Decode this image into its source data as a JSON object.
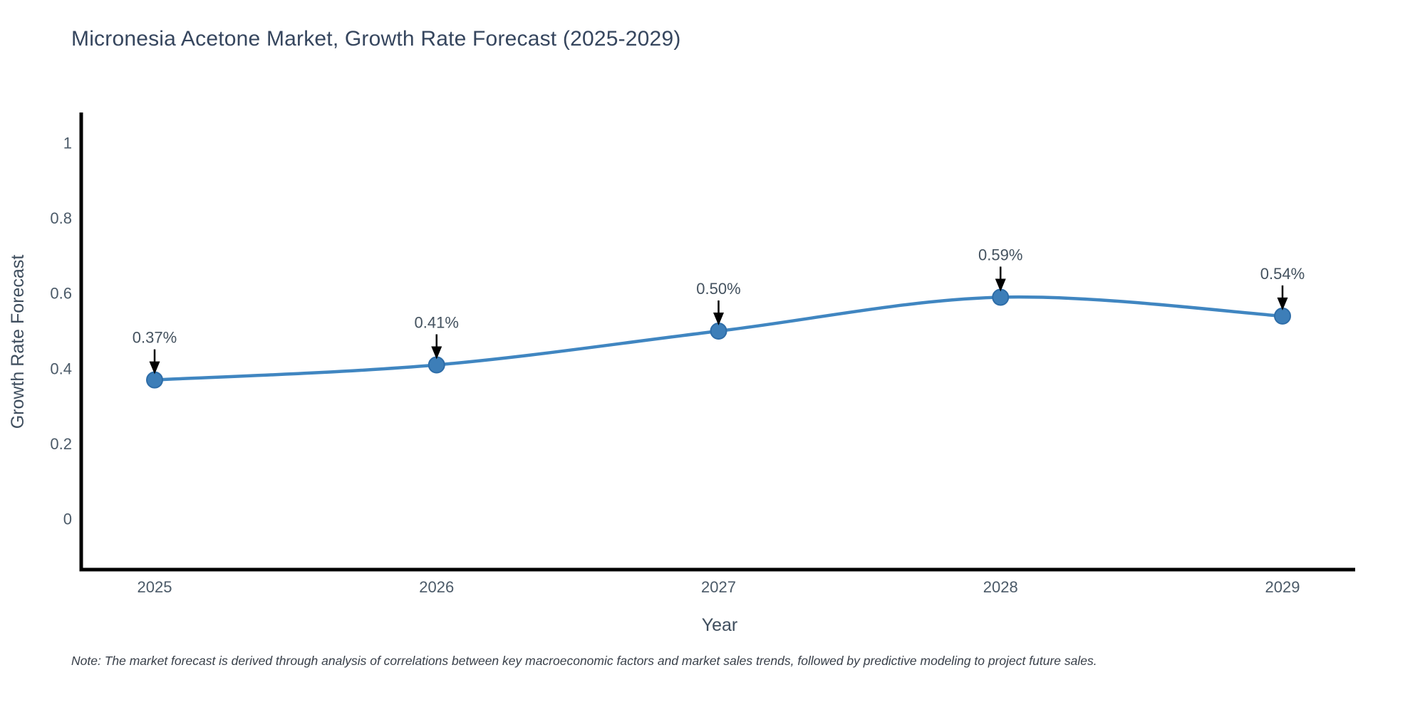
{
  "title": "Micronesia Acetone Market, Growth Rate Forecast (2025-2029)",
  "note": "Note: The market forecast is derived through analysis of correlations between key macroeconomic factors and market sales trends, followed by predictive modeling to project future sales.",
  "chart_data": {
    "type": "line",
    "title": "Micronesia Acetone Market, Growth Rate Forecast (2025-2029)",
    "xlabel": "Year",
    "ylabel": "Growth Rate Forecast",
    "x": [
      "2025",
      "2026",
      "2027",
      "2028",
      "2029"
    ],
    "series": [
      {
        "name": "Growth Rate Forecast",
        "values": [
          0.37,
          0.41,
          0.5,
          0.59,
          0.54
        ],
        "point_labels": [
          "0.37%",
          "0.41%",
          "0.50%",
          "0.59%",
          "0.54%"
        ]
      }
    ],
    "yticks": [
      0,
      0.2,
      0.4,
      0.6,
      0.8,
      1
    ],
    "ytick_labels": [
      "0",
      "0.2",
      "0.4",
      "0.6",
      "0.8",
      "1"
    ],
    "ylim": [
      -0.14,
      1.08
    ],
    "grid": false,
    "legend_position": "none",
    "line_shape": "spline",
    "annotations_arrow": true,
    "colors": {
      "line": "#4086c1",
      "marker_fill": "#3d7eb8",
      "marker_edge": "#2e6da8",
      "axis": "#000000",
      "tick_text": "#4b5a68",
      "axis_title_text": "#3f4e5e",
      "title_text": "#36465e",
      "annotation_text": "#44525f",
      "annotation_arrow": "#000000",
      "note_text": "#39404a",
      "background": "#ffffff"
    }
  }
}
